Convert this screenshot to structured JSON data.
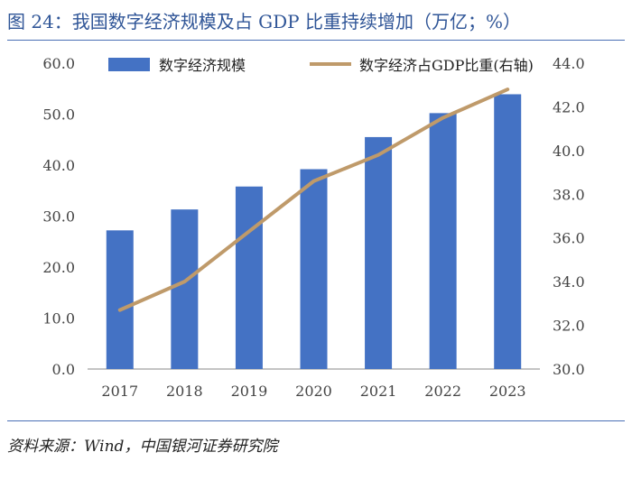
{
  "header": {
    "title": "图 24：我国数字经济规模及占 GDP 比重持续增加（万亿；%）"
  },
  "footer": {
    "source": "资料来源：Wind，中国银河证券研究院"
  },
  "chart_data": {
    "type": "bar-line",
    "categories": [
      "2017",
      "2018",
      "2019",
      "2020",
      "2021",
      "2022",
      "2023"
    ],
    "series": [
      {
        "name": "数字经济规模",
        "kind": "bar",
        "axis": "left",
        "color": "#4472c4",
        "values": [
          27.2,
          31.3,
          35.8,
          39.2,
          45.5,
          50.2,
          53.9
        ]
      },
      {
        "name": "数字经济占GDP比重(右轴)",
        "kind": "line",
        "axis": "right",
        "color": "#bf9a6a",
        "values": [
          32.7,
          34.0,
          36.3,
          38.6,
          39.8,
          41.5,
          42.8
        ]
      }
    ],
    "left_axis": {
      "min": 0,
      "max": 60,
      "step": 10,
      "ticks": [
        "0.0",
        "10.0",
        "20.0",
        "30.0",
        "40.0",
        "50.0",
        "60.0"
      ]
    },
    "right_axis": {
      "min": 30,
      "max": 44,
      "step": 2,
      "ticks": [
        "30.0",
        "32.0",
        "34.0",
        "36.0",
        "38.0",
        "40.0",
        "42.0",
        "44.0"
      ]
    },
    "legend": [
      "数字经济规模",
      "数字经济占GDP比重(右轴)"
    ],
    "legend_position": "top",
    "grid": false
  }
}
